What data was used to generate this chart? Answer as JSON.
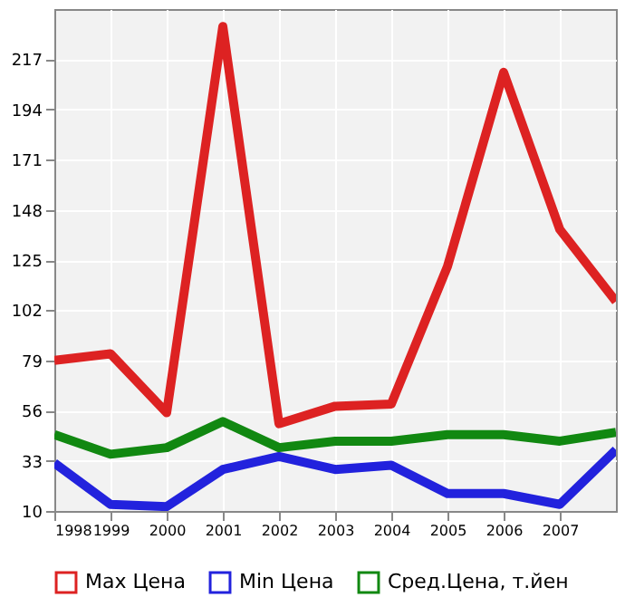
{
  "chart_data": {
    "type": "line",
    "x": [
      1998,
      1999,
      2000,
      2001,
      2002,
      2003,
      2004,
      2005,
      2006,
      2007,
      2008
    ],
    "series": [
      {
        "name": "Max Цена",
        "color": "#dd2222",
        "values": [
          79,
          82,
          55,
          232,
          50,
          58,
          59,
          122,
          211,
          139,
          106
        ]
      },
      {
        "name": "Min Цена",
        "color": "#2222dd",
        "values": [
          32,
          13,
          12,
          29,
          35,
          29,
          31,
          18,
          18,
          13,
          38
        ]
      },
      {
        "name": "Сред.Цена, т.йен",
        "color": "#118811",
        "values": [
          45,
          36,
          39,
          51,
          39,
          42,
          42,
          45,
          45,
          42,
          46
        ]
      }
    ],
    "xlim": [
      1998,
      2008
    ],
    "xticks": [
      1998,
      1999,
      2000,
      2001,
      2002,
      2003,
      2004,
      2005,
      2006,
      2007
    ],
    "ylim": [
      10,
      240
    ],
    "yticks": [
      10,
      33,
      56,
      79,
      102,
      125,
      148,
      171,
      194,
      217
    ],
    "grid": true,
    "legend": "bottom",
    "marker": "none",
    "line_style": "solid"
  }
}
